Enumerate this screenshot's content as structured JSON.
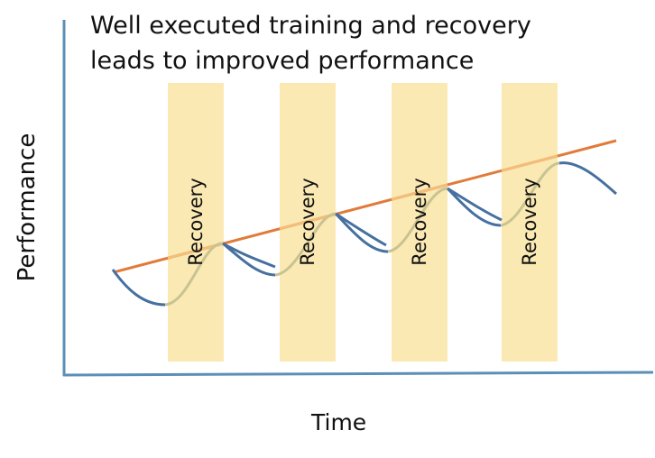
{
  "title_lines": [
    "Well executed training and recovery",
    "leads to improved performance"
  ],
  "axes": {
    "y_label": "Performance",
    "x_label": "Time"
  },
  "recovery_label": "Recovery",
  "recovery_phase_count": 4,
  "colors": {
    "axis": "#5b8fb7",
    "performance_curve": "#4670a0",
    "recovery_curve_segment": "#c9c391",
    "trend_line": "#e07b39",
    "trend_line_in_band": "#f2be7a",
    "recovery_band": "#fbe9b4"
  }
}
